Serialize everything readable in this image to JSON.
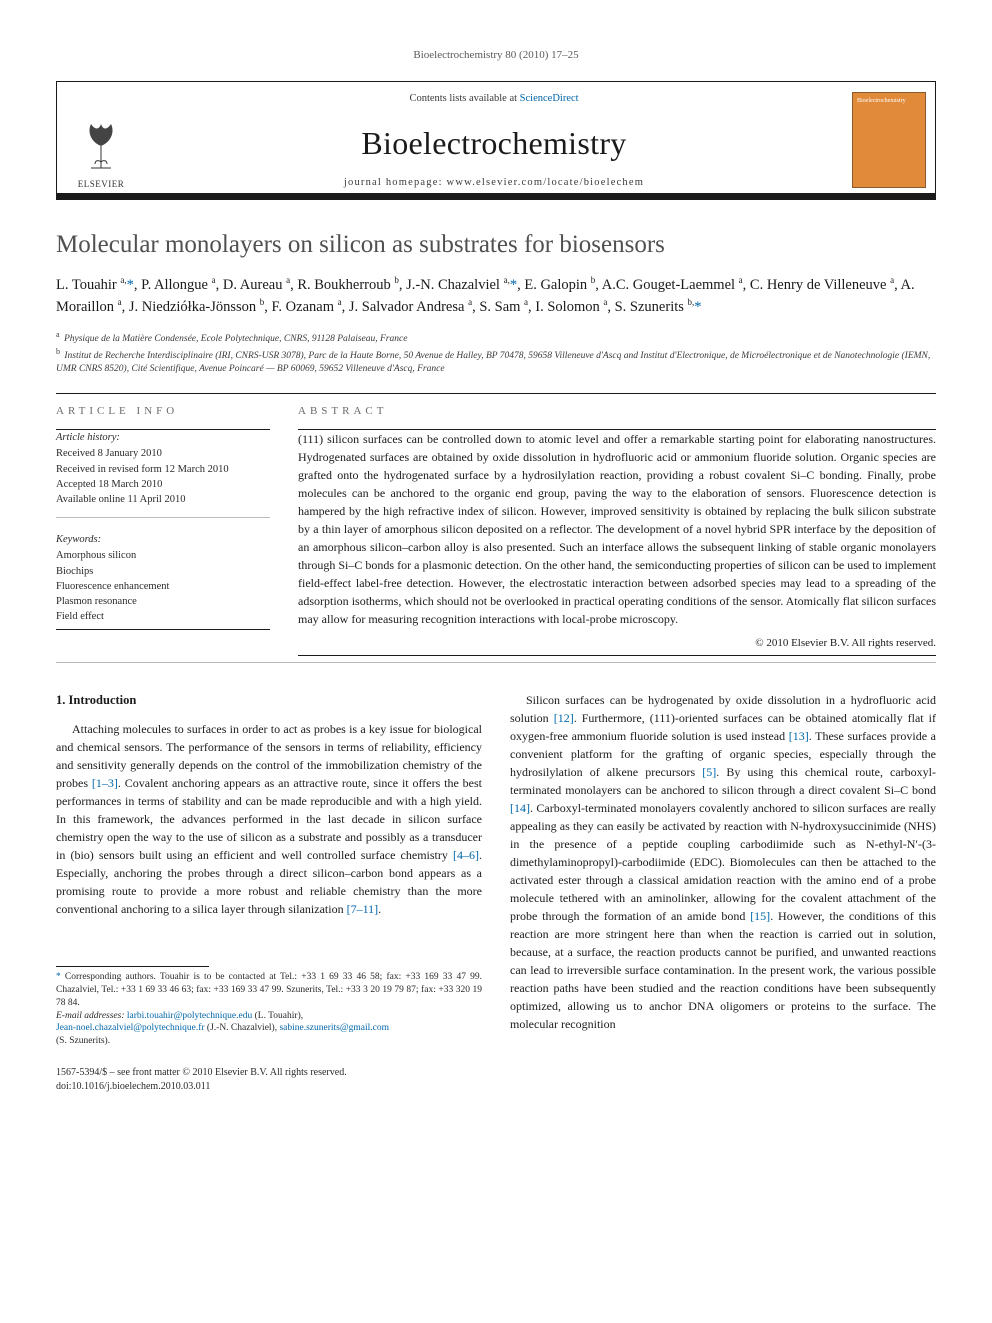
{
  "running_head": "Bioelectrochemistry 80 (2010) 17–25",
  "masthead": {
    "contents_prefix": "Contents lists available at ",
    "contents_link": "ScienceDirect",
    "journal": "Bioelectrochemistry",
    "homepage_prefix": "journal homepage: ",
    "homepage": "www.elsevier.com/locate/bioelechem",
    "publisher": "ELSEVIER",
    "cover_label": "Bioelectrochemistry"
  },
  "title": "Molecular monolayers on silicon as substrates for biosensors",
  "authors_html": "L. Touahir <sup>a,</sup><span class='corr'>*</span>, P. Allongue <sup>a</sup>, D. Aureau <sup>a</sup>, R. Boukherroub <sup>b</sup>, J.-N. Chazalviel <sup>a,</sup><span class='corr'>*</span>, E. Galopin <sup>b</sup>, A.C. Gouget-Laemmel <sup>a</sup>, C. Henry de Villeneuve <sup>a</sup>, A. Moraillon <sup>a</sup>, J. Niedziółka-Jönsson <sup>b</sup>, F. Ozanam <sup>a</sup>, J. Salvador Andresa <sup>a</sup>, S. Sam <sup>a</sup>, I. Solomon <sup>a</sup>, S. Szunerits <sup>b,</sup><span class='corr'>*</span>",
  "affiliations": [
    {
      "key": "a",
      "text": "Physique de la Matière Condensée, Ecole Polytechnique, CNRS, 91128 Palaiseau, France"
    },
    {
      "key": "b",
      "text": "Institut de Recherche Interdisciplinaire (IRI, CNRS-USR 3078), Parc de la Haute Borne, 50 Avenue de Halley, BP 70478, 59658 Villeneuve d'Ascq and Institut d'Electronique, de Microélectronique et de Nanotechnologie (IEMN, UMR CNRS 8520), Cité Scientifique, Avenue Poincaré — BP 60069, 59652 Villeneuve d'Ascq, France"
    }
  ],
  "article_info_label": "article info",
  "abstract_label": "abstract",
  "history": {
    "heading": "Article history:",
    "received": "Received 8 January 2010",
    "revised": "Received in revised form 12 March 2010",
    "accepted": "Accepted 18 March 2010",
    "online": "Available online 11 April 2010"
  },
  "keywords": {
    "heading": "Keywords:",
    "items": [
      "Amorphous silicon",
      "Biochips",
      "Fluorescence enhancement",
      "Plasmon resonance",
      "Field effect"
    ]
  },
  "abstract": "(111) silicon surfaces can be controlled down to atomic level and offer a remarkable starting point for elaborating nanostructures. Hydrogenated surfaces are obtained by oxide dissolution in hydrofluoric acid or ammonium fluoride solution. Organic species are grafted onto the hydrogenated surface by a hydrosilylation reaction, providing a robust covalent Si–C bonding. Finally, probe molecules can be anchored to the organic end group, paving the way to the elaboration of sensors. Fluorescence detection is hampered by the high refractive index of silicon. However, improved sensitivity is obtained by replacing the bulk silicon substrate by a thin layer of amorphous silicon deposited on a reflector. The development of a novel hybrid SPR interface by the deposition of an amorphous silicon–carbon alloy is also presented. Such an interface allows the subsequent linking of stable organic monolayers through Si–C bonds for a plasmonic detection. On the other hand, the semiconducting properties of silicon can be used to implement field-effect label-free detection. However, the electrostatic interaction between adsorbed species may lead to a spreading of the adsorption isotherms, which should not be overlooked in practical operating conditions of the sensor. Atomically flat silicon surfaces may allow for measuring recognition interactions with local-probe microscopy.",
  "copyright": "© 2010 Elsevier B.V. All rights reserved.",
  "intro_heading": "1. Introduction",
  "intro_p1_a": "Attaching molecules to surfaces in order to act as probes is a key issue for biological and chemical sensors. The performance of the sensors in terms of reliability, efficiency and sensitivity generally depends on the control of the immobilization chemistry of the probes ",
  "intro_p1_ref1": "[1–3]",
  "intro_p1_b": ". Covalent anchoring appears as an attractive route, since it offers the best performances in terms of stability and can be made reproducible and with a high yield. In this framework, the advances performed in the last decade in silicon surface chemistry open the way to the use of silicon as a substrate and possibly as a transducer in (bio) sensors built using an efficient and well controlled surface chemistry ",
  "intro_p1_ref2": "[4–6]",
  "intro_p1_c": ". Especially, anchoring the probes through a direct silicon–carbon bond appears as a promising route to provide a more robust and reliable chemistry than the more conventional anchoring to a silica layer through silanization ",
  "intro_p1_ref3": "[7–11]",
  "intro_p1_d": ".",
  "intro_p2_a": "Silicon surfaces can be hydrogenated by oxide dissolution in a hydrofluoric acid solution ",
  "intro_p2_ref1": "[12]",
  "intro_p2_b": ". Furthermore, (111)-oriented surfaces can be obtained atomically flat if oxygen-free ammonium fluoride solution is used instead ",
  "intro_p2_ref2": "[13]",
  "intro_p2_c": ". These surfaces provide a convenient platform for the grafting of organic species, especially through the hydrosilylation of alkene precursors ",
  "intro_p2_ref3": "[5]",
  "intro_p2_d": ". By using this chemical route, carboxyl-terminated monolayers can be anchored to silicon through a direct covalent Si–C bond ",
  "intro_p2_ref4": "[14]",
  "intro_p2_e": ". Carboxyl-terminated monolayers covalently anchored to silicon surfaces are really appealing as they can easily be activated by reaction with N-hydroxysuccinimide (NHS) in the presence of a peptide coupling carbodiimide such as N-ethyl-N′-(3-dimethylaminopropyl)-carbodiimide (EDC). Biomolecules can then be attached to the activated ester through a classical amidation reaction with the amino end of a probe molecule tethered with an aminolinker, allowing for the covalent attachment of the probe through the formation of an amide bond ",
  "intro_p2_ref5": "[15]",
  "intro_p2_f": ". However, the conditions of this reaction are more stringent here than when the reaction is carried out in solution, because, at a surface, the reaction products cannot be purified, and unwanted reactions can lead to irreversible surface contamination. In the present work, the various possible reaction paths have been studied and the reaction conditions have been subsequently optimized, allowing us to anchor DNA oligomers or proteins to the surface. The molecular recognition",
  "footnotes": {
    "corr": "Corresponding authors. Touahir is to be contacted at Tel.: +33 1 69 33 46 58; fax: +33 169 33 47 99. Chazalviel, Tel.: +33 1 69 33 46 63; fax: +33 169 33 47 99. Szunerits, Tel.: +33 3 20 19 79 87; fax: +33 320 19 78 84.",
    "email_label": "E-mail addresses: ",
    "email1": "larbi.touahir@polytechnique.edu",
    "email1_who": " (L. Touahir), ",
    "email2": "Jean-noel.chazalviel@polytechnique.fr",
    "email2_who": " (J.-N. Chazalviel), ",
    "email3": "sabine.szunerits@gmail.com",
    "email3_who": " (S. Szunerits)."
  },
  "footer": {
    "line1": "1567-5394/$ – see front matter © 2010 Elsevier B.V. All rights reserved.",
    "line2": "doi:10.1016/j.bioelechem.2010.03.011"
  },
  "colors": {
    "link": "#0066aa",
    "text": "#1a1a1a",
    "muted": "#5a5a5a",
    "cover": "#e08a3a"
  }
}
